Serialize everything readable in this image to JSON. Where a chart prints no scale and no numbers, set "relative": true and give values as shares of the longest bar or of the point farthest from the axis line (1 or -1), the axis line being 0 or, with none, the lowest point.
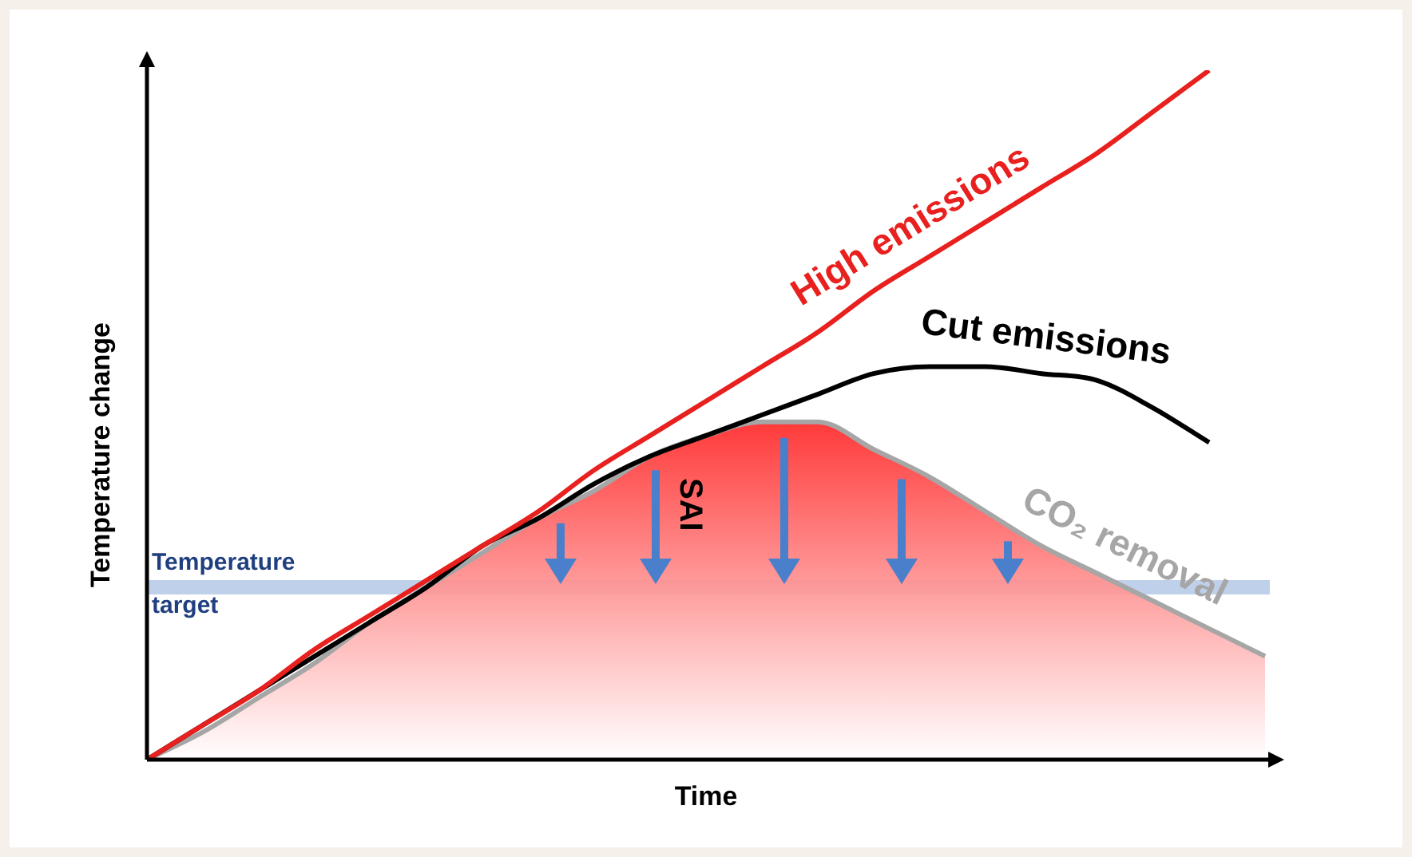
{
  "chart_data": {
    "type": "line",
    "relative": true,
    "xlabel": "Time",
    "ylabel": "Temperature change",
    "categories": [
      null,
      null,
      null,
      null,
      null,
      null,
      null,
      null,
      null,
      null,
      null,
      null,
      null,
      null,
      null,
      null,
      null,
      null,
      null,
      null,
      null
    ],
    "series": [
      {
        "name": "CO₂ removal",
        "type": "area",
        "color": "#a6a6a6",
        "values": [
          0,
          0.04,
          0.09,
          0.14,
          0.2,
          0.25,
          0.3,
          0.35,
          0.39,
          0.44,
          0.47,
          0.49,
          0.49,
          0.45,
          0.41,
          0.36,
          0.31,
          0.27,
          0.23,
          0.19,
          0.15
        ]
      },
      {
        "name": "Cut emissions",
        "color": "#000000",
        "values": [
          0,
          0.05,
          0.1,
          0.15,
          0.2,
          0.25,
          0.31,
          0.35,
          0.4,
          0.44,
          0.47,
          0.5,
          0.53,
          0.56,
          0.57,
          0.57,
          0.56,
          0.55,
          0.51,
          0.46,
          null
        ]
      },
      {
        "name": "High emissions",
        "color": "#e8201e",
        "values": [
          0,
          0.05,
          0.1,
          0.16,
          0.21,
          0.26,
          0.31,
          0.36,
          0.42,
          0.47,
          0.52,
          0.57,
          0.62,
          0.68,
          0.73,
          0.78,
          0.83,
          0.88,
          0.94,
          1,
          null
        ]
      }
    ],
    "ref_lines": [
      {
        "axis": "y",
        "value": 0.25,
        "label": "Temperature target",
        "color": "#b4c9e6"
      }
    ],
    "annotations": [
      "SAI"
    ],
    "marker": "none"
  }
}
